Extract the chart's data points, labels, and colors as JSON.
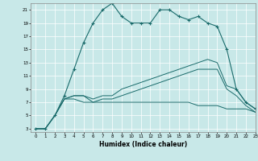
{
  "xlabel": "Humidex (Indice chaleur)",
  "bg_color": "#c8e8e8",
  "line_color": "#1a6b6b",
  "grid_color": "#ffffff",
  "xlim": [
    -0.5,
    23
  ],
  "ylim": [
    2.5,
    22
  ],
  "yticks": [
    3,
    5,
    7,
    9,
    11,
    13,
    15,
    17,
    19,
    21
  ],
  "xticks": [
    0,
    1,
    2,
    3,
    4,
    5,
    6,
    7,
    8,
    9,
    10,
    11,
    12,
    13,
    14,
    15,
    16,
    17,
    18,
    19,
    20,
    21,
    22,
    23
  ],
  "lines": [
    {
      "x": [
        0,
        1,
        2,
        3,
        4,
        5,
        6,
        7,
        8,
        9,
        10,
        11,
        12,
        13,
        14,
        15,
        16,
        17,
        18,
        19,
        20,
        21,
        22,
        23
      ],
      "y": [
        3,
        3,
        5,
        8,
        12,
        16,
        19,
        21,
        22,
        20,
        19,
        19,
        19,
        21,
        21,
        20,
        19.5,
        20,
        19,
        18.5,
        15,
        9,
        7,
        6
      ],
      "marker": true
    },
    {
      "x": [
        0,
        1,
        2,
        3,
        4,
        5,
        6,
        7,
        8,
        9,
        10,
        11,
        12,
        13,
        14,
        15,
        16,
        17,
        18,
        19,
        20,
        21,
        22,
        23
      ],
      "y": [
        3,
        3,
        5,
        7.5,
        8,
        8,
        7.5,
        8,
        8,
        9,
        9.5,
        10,
        10.5,
        11,
        11.5,
        12,
        12.5,
        13,
        13.5,
        13,
        9.5,
        9,
        7,
        6
      ],
      "marker": false
    },
    {
      "x": [
        0,
        1,
        2,
        3,
        4,
        5,
        6,
        7,
        8,
        9,
        10,
        11,
        12,
        13,
        14,
        15,
        16,
        17,
        18,
        19,
        20,
        21,
        22,
        23
      ],
      "y": [
        3,
        3,
        5,
        7.5,
        8,
        8,
        7,
        7.5,
        7.5,
        8,
        8.5,
        9,
        9.5,
        10,
        10.5,
        11,
        11.5,
        12,
        12,
        12,
        9,
        8,
        6.5,
        5.5
      ],
      "marker": false
    },
    {
      "x": [
        0,
        1,
        2,
        3,
        4,
        5,
        6,
        7,
        8,
        9,
        10,
        11,
        12,
        13,
        14,
        15,
        16,
        17,
        18,
        19,
        20,
        21,
        22,
        23
      ],
      "y": [
        3,
        3,
        5,
        7.5,
        7.5,
        7,
        7,
        7,
        7,
        7,
        7,
        7,
        7,
        7,
        7,
        7,
        7,
        6.5,
        6.5,
        6.5,
        6,
        6,
        6,
        5.5
      ],
      "marker": false
    }
  ]
}
